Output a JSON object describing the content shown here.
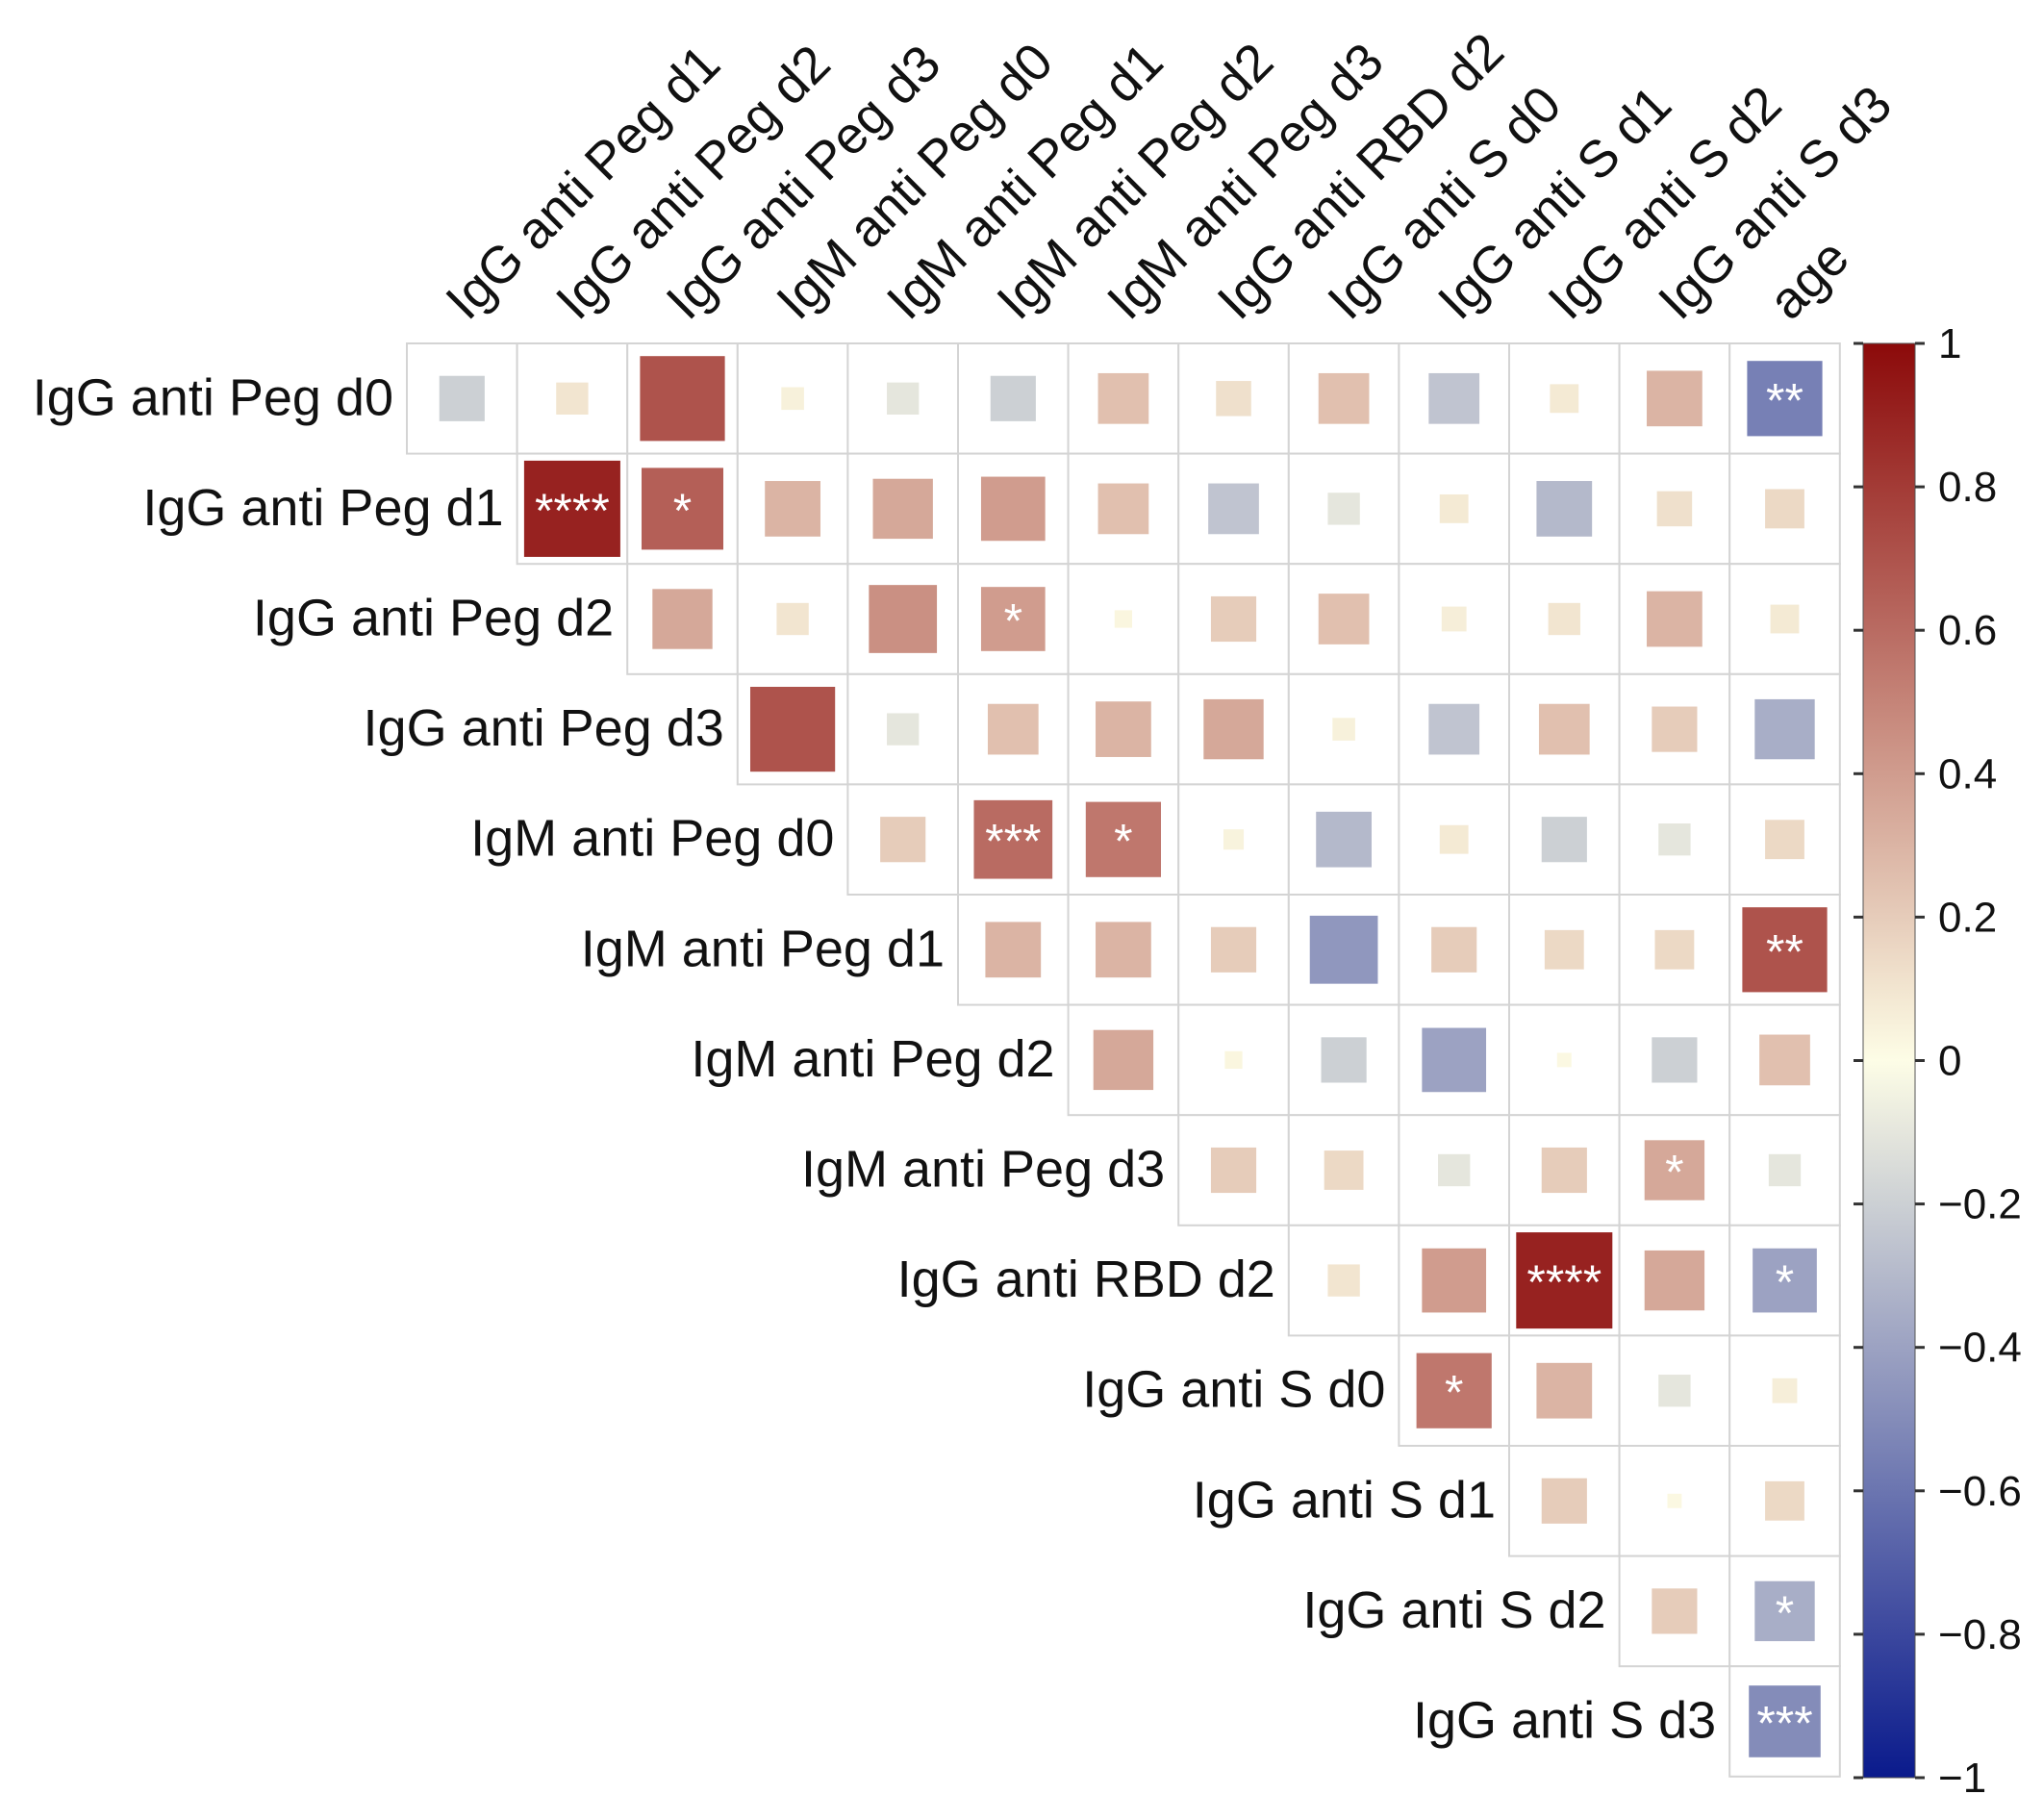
{
  "chart_data": {
    "type": "heatmap",
    "subtype": "upper-triangle correlation matrix (corrplot, square method)",
    "row_labels": [
      "IgG anti Peg d0",
      "IgG anti Peg d1",
      "IgG anti Peg d2",
      "IgG anti Peg d3",
      "IgM anti Peg d0",
      "IgM anti Peg d1",
      "IgM anti Peg d2",
      "IgM anti Peg d3",
      "IgG anti RBD d2",
      "IgG anti S d0",
      "IgG anti S d1",
      "IgG anti S d2",
      "IgG anti S d3"
    ],
    "col_labels": [
      "IgG anti Peg d1",
      "IgG anti Peg d2",
      "IgG anti Peg d3",
      "IgM anti Peg d0",
      "IgM anti Peg d1",
      "IgM anti Peg d2",
      "IgM anti Peg d3",
      "IgG anti RBD d2",
      "IgG anti S d0",
      "IgG anti S d1",
      "IgG anti S d2",
      "IgG anti S d3",
      "age"
    ],
    "cells": [
      [
        -0.2,
        0.1,
        0.7,
        0.05,
        -0.1,
        -0.2,
        0.25,
        0.12,
        0.25,
        -0.25,
        0.08,
        0.3,
        -0.55
      ],
      [
        null,
        0.9,
        0.65,
        0.3,
        0.35,
        0.4,
        0.25,
        -0.25,
        -0.1,
        0.08,
        -0.3,
        0.12,
        0.15
      ],
      [
        null,
        null,
        0.35,
        0.1,
        0.45,
        0.4,
        0.03,
        0.2,
        0.25,
        0.06,
        0.1,
        0.3,
        0.08
      ],
      [
        null,
        null,
        null,
        0.7,
        -0.1,
        0.25,
        0.3,
        0.35,
        0.05,
        -0.25,
        0.25,
        0.2,
        -0.35
      ],
      [
        null,
        null,
        null,
        null,
        0.2,
        0.6,
        0.55,
        0.04,
        -0.3,
        0.08,
        -0.2,
        -0.1,
        0.15
      ],
      [
        null,
        null,
        null,
        null,
        null,
        0.3,
        0.3,
        0.2,
        -0.45,
        0.2,
        0.15,
        0.15,
        0.7
      ],
      [
        null,
        null,
        null,
        null,
        null,
        null,
        0.35,
        0.03,
        -0.2,
        -0.4,
        0.02,
        -0.2,
        0.25
      ],
      [
        null,
        null,
        null,
        null,
        null,
        null,
        null,
        0.2,
        0.15,
        -0.1,
        0.2,
        0.35,
        -0.1
      ],
      [
        null,
        null,
        null,
        null,
        null,
        null,
        null,
        null,
        0.1,
        0.4,
        0.9,
        0.35,
        -0.4
      ],
      [
        null,
        null,
        null,
        null,
        null,
        null,
        null,
        null,
        null,
        0.55,
        0.3,
        -0.1,
        0.06
      ],
      [
        null,
        null,
        null,
        null,
        null,
        null,
        null,
        null,
        null,
        null,
        0.2,
        0.02,
        0.15
      ],
      [
        null,
        null,
        null,
        null,
        null,
        null,
        null,
        null,
        null,
        null,
        null,
        0.2,
        -0.35
      ],
      [
        null,
        null,
        null,
        null,
        null,
        null,
        null,
        null,
        null,
        null,
        null,
        null,
        -0.5
      ]
    ],
    "significance": [
      [
        "",
        "",
        "",
        "",
        "",
        "",
        "",
        "",
        "",
        "",
        "",
        "",
        "**"
      ],
      [
        "",
        "****",
        "*",
        "",
        "",
        "",
        "",
        "",
        "",
        "",
        "",
        "",
        ""
      ],
      [
        "",
        "",
        "",
        "",
        "",
        "*",
        "",
        "",
        "",
        "",
        "",
        "",
        ""
      ],
      [
        "",
        "",
        "",
        "",
        "",
        "",
        "",
        "",
        "",
        "",
        "",
        "",
        ""
      ],
      [
        "",
        "",
        "",
        "",
        "",
        "***",
        "*",
        "",
        "",
        "",
        "",
        "",
        ""
      ],
      [
        "",
        "",
        "",
        "",
        "",
        "",
        "",
        "",
        "",
        "",
        "",
        "",
        "**"
      ],
      [
        "",
        "",
        "",
        "",
        "",
        "",
        "",
        "",
        "",
        "",
        "",
        "",
        ""
      ],
      [
        "",
        "",
        "",
        "",
        "",
        "",
        "",
        "",
        "",
        "",
        "",
        "*",
        ""
      ],
      [
        "",
        "",
        "",
        "",
        "",
        "",
        "",
        "",
        "",
        "",
        "****",
        "",
        "*"
      ],
      [
        "",
        "",
        "",
        "",
        "",
        "",
        "",
        "",
        "",
        "*",
        "",
        "",
        ""
      ],
      [
        "",
        "",
        "",
        "",
        "",
        "",
        "",
        "",
        "",
        "",
        "",
        "",
        ""
      ],
      [
        "",
        "",
        "",
        "",
        "",
        "",
        "",
        "",
        "",
        "",
        "",
        "",
        "*"
      ],
      [
        "",
        "",
        "",
        "",
        "",
        "",
        "",
        "",
        "",
        "",
        "",
        "",
        "***"
      ]
    ],
    "colorbar": {
      "range": [
        -1,
        1
      ],
      "ticks": [
        "1",
        "0.8",
        "0.6",
        "0.4",
        "0.2",
        "0",
        "−0.2",
        "−0.4",
        "−0.6",
        "−0.8",
        "−1"
      ],
      "colors": {
        "low": "#0a1a8c",
        "mid": "#fdfde6",
        "high": "#8c0a0a"
      }
    }
  }
}
